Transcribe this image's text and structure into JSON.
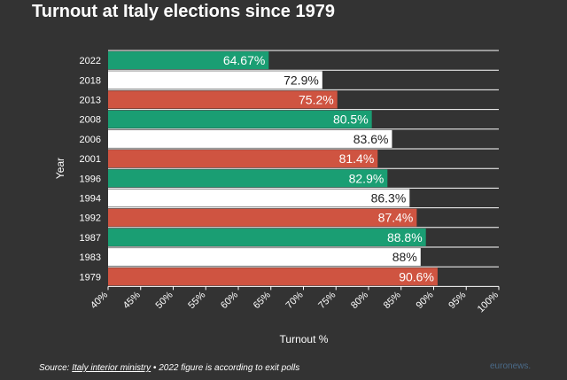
{
  "chart_data": {
    "type": "bar",
    "orientation": "horizontal",
    "title": "Turnout at Italy elections since 1979",
    "xlabel": "Turnout %",
    "ylabel": "Year",
    "categories": [
      "2022",
      "2018",
      "2013",
      "2008",
      "2006",
      "2001",
      "1996",
      "1994",
      "1992",
      "1987",
      "1983",
      "1979"
    ],
    "values": [
      64.67,
      72.9,
      75.2,
      80.5,
      83.6,
      81.4,
      82.9,
      86.3,
      87.4,
      88.8,
      88,
      90.6
    ],
    "value_labels": [
      "64.67%",
      "72.9%",
      "75.2%",
      "80.5%",
      "83.6%",
      "81.4%",
      "82.9%",
      "86.3%",
      "87.4%",
      "88.8%",
      "88%",
      "90.6%"
    ],
    "bar_colors": [
      "#1a9e73",
      "#ffffff",
      "#cf5441",
      "#1a9e73",
      "#ffffff",
      "#cf5441",
      "#1a9e73",
      "#ffffff",
      "#cf5441",
      "#1a9e73",
      "#ffffff",
      "#cf5441"
    ],
    "xlim": [
      40,
      100
    ],
    "xticks": [
      40,
      45,
      50,
      55,
      60,
      65,
      70,
      75,
      80,
      85,
      90,
      95,
      100
    ],
    "xtick_labels": [
      "40%",
      "45%",
      "50%",
      "55%",
      "60%",
      "65%",
      "70%",
      "75%",
      "80%",
      "85%",
      "90%",
      "95%",
      "100%"
    ],
    "grid": "vertical-off, horizontal row lines on",
    "legend": "none"
  },
  "footer": {
    "source_prefix": "Source: ",
    "source_link": "Italy interior ministry",
    "source_note": " • 2022 figure is according to exit polls"
  },
  "brand": {
    "logo_text": "euronews."
  },
  "colors": {
    "background": "#333333",
    "green": "#1a9e73",
    "white": "#ffffff",
    "red": "#cf5441",
    "grid": "#ffffff"
  }
}
